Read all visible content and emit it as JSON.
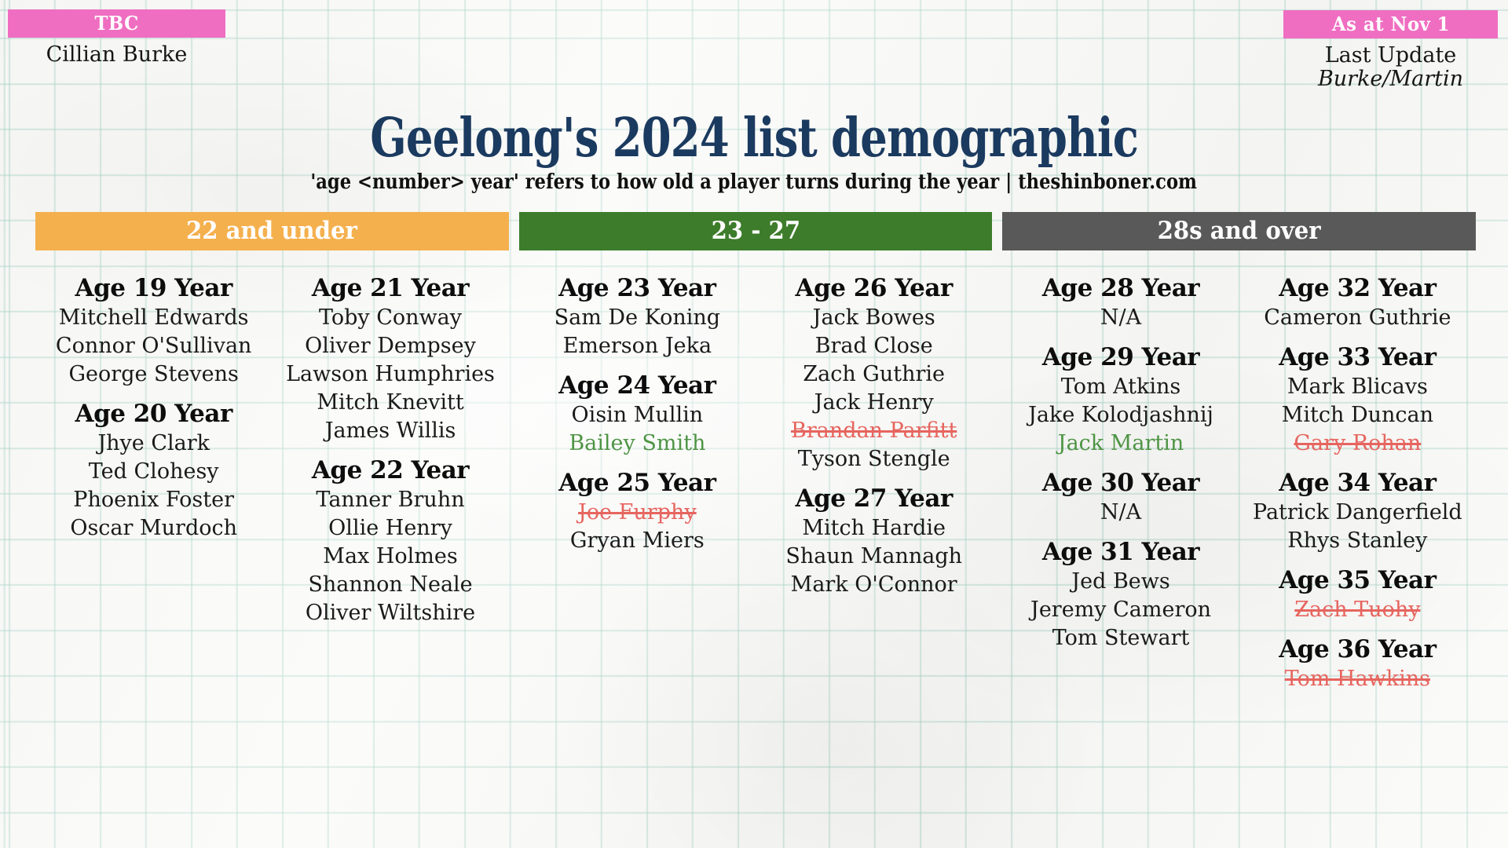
{
  "top_left": {
    "badge_label": "TBC",
    "player": "Cillian Burke"
  },
  "top_right": {
    "badge_label": "As at Nov 1",
    "line1": "Last Update",
    "line2": "Burke/Martin"
  },
  "header": {
    "title": "Geelong's 2024 list demographic",
    "subtitle": "'age <number> year' refers to how old a player turns during the year | theshinboner.com"
  },
  "colors": {
    "badge_pink": "#ef6ec1",
    "title_navy": "#1b3a5f",
    "new_player_green": "#4e9444",
    "departed_player_red": "#e6655f",
    "grid_line": "#a8d4c9"
  },
  "sections": [
    {
      "label": "22 and under",
      "color": "#f5b04e",
      "columns": [
        {
          "groups": [
            {
              "heading": "Age 19 Year",
              "players": [
                {
                  "name": "Mitchell Edwards",
                  "status": "normal"
                },
                {
                  "name": "Connor O'Sullivan",
                  "status": "normal"
                },
                {
                  "name": "George Stevens",
                  "status": "normal"
                }
              ]
            },
            {
              "heading": "Age 20 Year",
              "players": [
                {
                  "name": "Jhye Clark",
                  "status": "normal"
                },
                {
                  "name": "Ted Clohesy",
                  "status": "normal"
                },
                {
                  "name": "Phoenix Foster",
                  "status": "normal"
                },
                {
                  "name": "Oscar Murdoch",
                  "status": "normal"
                }
              ]
            }
          ]
        },
        {
          "groups": [
            {
              "heading": "Age 21 Year",
              "players": [
                {
                  "name": "Toby Conway",
                  "status": "normal"
                },
                {
                  "name": "Oliver Dempsey",
                  "status": "normal"
                },
                {
                  "name": "Lawson Humphries",
                  "status": "normal"
                },
                {
                  "name": "Mitch Knevitt",
                  "status": "normal"
                },
                {
                  "name": "James Willis",
                  "status": "normal"
                }
              ]
            },
            {
              "heading": "Age 22 Year",
              "players": [
                {
                  "name": "Tanner Bruhn",
                  "status": "normal"
                },
                {
                  "name": "Ollie Henry",
                  "status": "normal"
                },
                {
                  "name": "Max Holmes",
                  "status": "normal"
                },
                {
                  "name": "Shannon Neale",
                  "status": "normal"
                },
                {
                  "name": "Oliver Wiltshire",
                  "status": "normal"
                }
              ]
            }
          ]
        }
      ]
    },
    {
      "label": "23 - 27",
      "color": "#3d7c2b",
      "columns": [
        {
          "groups": [
            {
              "heading": "Age 23 Year",
              "players": [
                {
                  "name": "Sam De Koning",
                  "status": "normal"
                },
                {
                  "name": "Emerson Jeka",
                  "status": "normal"
                }
              ]
            },
            {
              "heading": "Age 24 Year",
              "players": [
                {
                  "name": "Oisin Mullin",
                  "status": "normal"
                },
                {
                  "name": "Bailey Smith",
                  "status": "new"
                }
              ]
            },
            {
              "heading": "Age 25 Year",
              "players": [
                {
                  "name": "Joe Furphy",
                  "status": "departed"
                },
                {
                  "name": "Gryan Miers",
                  "status": "normal"
                }
              ]
            }
          ]
        },
        {
          "groups": [
            {
              "heading": "Age 26 Year",
              "players": [
                {
                  "name": "Jack Bowes",
                  "status": "normal"
                },
                {
                  "name": "Brad Close",
                  "status": "normal"
                },
                {
                  "name": "Zach Guthrie",
                  "status": "normal"
                },
                {
                  "name": "Jack Henry",
                  "status": "normal"
                },
                {
                  "name": "Brandan Parfitt",
                  "status": "departed"
                },
                {
                  "name": "Tyson Stengle",
                  "status": "normal"
                }
              ]
            },
            {
              "heading": "Age 27 Year",
              "players": [
                {
                  "name": "Mitch Hardie",
                  "status": "normal"
                },
                {
                  "name": "Shaun Mannagh",
                  "status": "normal"
                },
                {
                  "name": "Mark O'Connor",
                  "status": "normal"
                }
              ]
            }
          ]
        }
      ]
    },
    {
      "label": "28s and over",
      "color": "#595959",
      "columns": [
        {
          "groups": [
            {
              "heading": "Age 28 Year",
              "players": [
                {
                  "name": "N/A",
                  "status": "normal"
                }
              ]
            },
            {
              "heading": "Age 29 Year",
              "players": [
                {
                  "name": "Tom Atkins",
                  "status": "normal"
                },
                {
                  "name": "Jake Kolodjashnij",
                  "status": "normal"
                },
                {
                  "name": "Jack Martin",
                  "status": "new"
                }
              ]
            },
            {
              "heading": "Age 30 Year",
              "players": [
                {
                  "name": "N/A",
                  "status": "normal"
                }
              ]
            },
            {
              "heading": "Age 31 Year",
              "players": [
                {
                  "name": "Jed Bews",
                  "status": "normal"
                },
                {
                  "name": "Jeremy Cameron",
                  "status": "normal"
                },
                {
                  "name": "Tom Stewart",
                  "status": "normal"
                }
              ]
            }
          ]
        },
        {
          "groups": [
            {
              "heading": "Age 32 Year",
              "players": [
                {
                  "name": "Cameron Guthrie",
                  "status": "normal"
                }
              ]
            },
            {
              "heading": "Age 33 Year",
              "players": [
                {
                  "name": "Mark Blicavs",
                  "status": "normal"
                },
                {
                  "name": "Mitch Duncan",
                  "status": "normal"
                },
                {
                  "name": "Gary Rohan",
                  "status": "departed"
                }
              ]
            },
            {
              "heading": "Age 34 Year",
              "players": [
                {
                  "name": "Patrick Dangerfield",
                  "status": "normal"
                },
                {
                  "name": "Rhys Stanley",
                  "status": "normal"
                }
              ]
            },
            {
              "heading": "Age 35 Year",
              "players": [
                {
                  "name": "Zach Tuohy",
                  "status": "departed"
                }
              ]
            },
            {
              "heading": "Age 36 Year",
              "players": [
                {
                  "name": "Tom Hawkins",
                  "status": "departed"
                }
              ]
            }
          ]
        }
      ]
    }
  ]
}
